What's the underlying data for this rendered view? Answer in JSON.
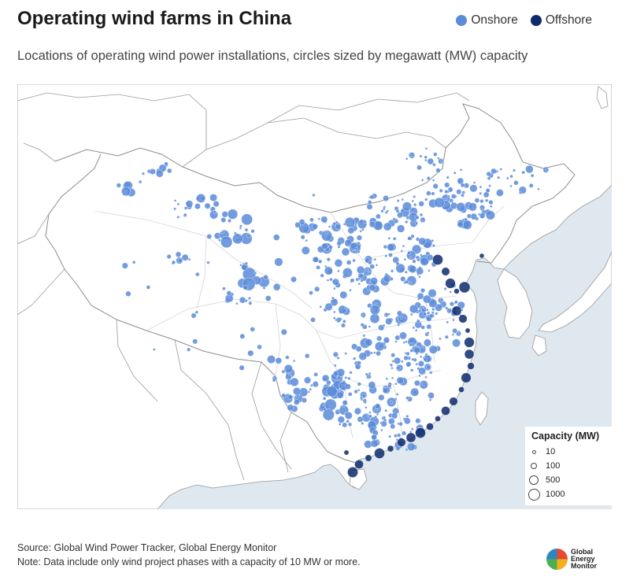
{
  "header": {
    "title": "Operating wind farms in China",
    "subtitle": "Locations of operating wind power installations, circles sized by megawatt (MW) capacity"
  },
  "legend": {
    "onshore": {
      "label": "Onshore",
      "color": "#5b8bd9"
    },
    "offshore": {
      "label": "Offshore",
      "color": "#0d2a6b"
    }
  },
  "capacity_legend": {
    "title": "Capacity (MW)",
    "items": [
      "10",
      "100",
      "500",
      "1000"
    ]
  },
  "map": {
    "land_color": "#ffffff",
    "sea_color": "#dfe7ef",
    "border_color": "#9a9a9a"
  },
  "footer": {
    "source": "Source: Global Wind Power Tracker, Global Energy Monitor",
    "note": "Note: Data include only wind project phases with a capacity of 10 MW or more."
  },
  "logo": {
    "line1": "Global",
    "line2": "Energy",
    "line3": "Monitor"
  }
}
